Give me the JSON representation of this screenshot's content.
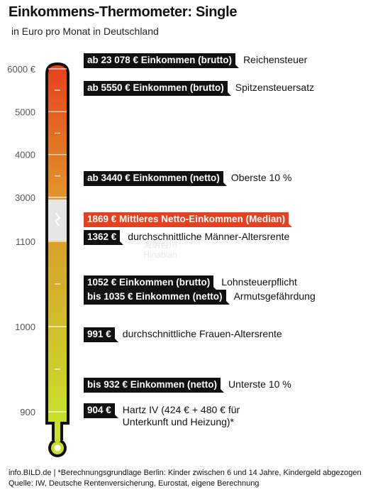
{
  "chart_data": {
    "type": "thermometer",
    "title": "Einkommens-Thermometer: Single",
    "subtitle": "in Euro pro Monat in Deutschland",
    "y_ticks_upper": [
      {
        "label": "6000 €",
        "value": 6000
      },
      {
        "label": "5000",
        "value": 5000
      },
      {
        "label": "4000",
        "value": 4000
      },
      {
        "label": "3000",
        "value": 3000
      }
    ],
    "y_ticks_lower": [
      {
        "label": "1100",
        "value": 1100
      },
      {
        "label": "1000",
        "value": 1000
      },
      {
        "label": "900",
        "value": 900
      }
    ],
    "upper_range": [
      3000,
      6000
    ],
    "lower_range": [
      900,
      1100
    ],
    "axis_break": [
      3000,
      1100
    ],
    "markers": [
      {
        "value": 23078,
        "segment": "top",
        "tag": "ab 23 078 € Einkommen (brutto)",
        "desc": "Reichensteuer",
        "accent": false
      },
      {
        "value": 5550,
        "segment": "upper",
        "tag": "ab 5550 € Einkommen (brutto)",
        "desc": "Spitzensteuersatz",
        "accent": false
      },
      {
        "value": 3440,
        "segment": "upper",
        "tag": "ab 3440 € Einkommen (netto)",
        "desc": "Oberste 10 %",
        "accent": false
      },
      {
        "value": 1869,
        "segment": "break",
        "tag": "1869 € Mittleres Netto-Einkommen (Median)",
        "desc": "",
        "accent": true
      },
      {
        "value": 1362,
        "segment": "break",
        "tag": "1362 €",
        "desc": "durchschnittliche Männer-Altersrente",
        "accent": false
      },
      {
        "value": 1052,
        "segment": "lower",
        "tag": "1052 € Einkommen (brutto)",
        "desc": "Lohnsteuerpflicht",
        "accent": false
      },
      {
        "value": 1035,
        "segment": "lower",
        "tag": "bis 1035 € Einkommen (netto)",
        "desc": "Armutsgefährdung",
        "accent": false
      },
      {
        "value": 991,
        "segment": "lower",
        "tag": "991 €",
        "desc": "durchschnittliche Frauen-Altersrente",
        "accent": false
      },
      {
        "value": 932,
        "segment": "lower",
        "tag": "bis 932 € Einkommen (netto)",
        "desc": "Unterste 10 %",
        "accent": false
      },
      {
        "value": 904,
        "segment": "lower",
        "tag": "904 €",
        "desc": "Hartz IV (424 € + 480 € für\nUnterkunft und Heizung)*",
        "accent": false
      }
    ],
    "colors": {
      "top": "#e8401e",
      "mid": "#e0962a",
      "lower_top": "#d8a02a",
      "bottom": "#c8e02a",
      "break": "#e6e6e6",
      "outline": "#111111",
      "accent": "#e8401e"
    }
  },
  "footer": {
    "line1": "info.BILD.de | *Berechnungsgrundlage Berlin: Kinder zwischen 6 und 14 Jahre, Kindergeld abgezogen",
    "line2": "Quelle: IW, Deutsche Rentenversicherung, Eurostat, eigene Berechnung"
  },
  "watermark": {
    "line1": "海纳百川",
    "line2": "Hinabian"
  }
}
